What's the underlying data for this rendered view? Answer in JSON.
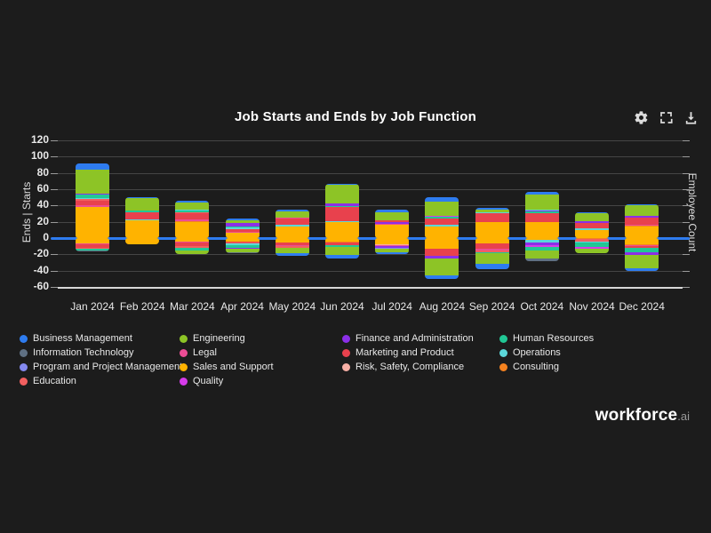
{
  "title": "Job Starts and Ends by Job Function",
  "axes": {
    "left_label": "Ends | Starts",
    "right_label": "Employee Count"
  },
  "branding": {
    "name": "workforce",
    "suffix": ".ai"
  },
  "toolbar": {
    "icons": [
      "settings",
      "fullscreen",
      "download"
    ]
  },
  "colors": {
    "background": "#1c1c1c",
    "grid": "#454545",
    "axis_line": "#d8d8d8",
    "zero_line": "#2e7cf0",
    "text": "#e8e8e8"
  },
  "chart_data": {
    "type": "bar",
    "stacked": true,
    "title": "Job Starts and Ends by Job Function",
    "ylim": [
      -60,
      120
    ],
    "y_ticks": [
      120,
      100,
      80,
      60,
      40,
      20,
      0,
      -20,
      -40,
      -60
    ],
    "grid": true,
    "legend_position": "bottom",
    "categories": [
      "Jan 2024",
      "Feb 2024",
      "Mar 2024",
      "Apr 2024",
      "May 2024",
      "Jun 2024",
      "Jul 2024",
      "Aug 2024",
      "Sep 2024",
      "Oct 2024",
      "Nov 2024",
      "Dec 2024"
    ],
    "series_colors": {
      "Business Management": "#2e7cf0",
      "Information Technology": "#5f7083",
      "Program and Project Management": "#8489f0",
      "Education": "#f25f5f",
      "Engineering": "#8dc426",
      "Legal": "#ec4d95",
      "Sales and Support": "#ffb300",
      "Quality": "#d63bea",
      "Finance and Administration": "#8b2fe8",
      "Marketing and Product": "#e8414d",
      "Risk, Safety, Compliance": "#f7afa5",
      "Human Resources": "#21c795",
      "Operations": "#5bd7d9",
      "Consulting": "#f5821f"
    },
    "legend_columns": [
      [
        "Business Management",
        "Information Technology",
        "Program and Project Management",
        "Education"
      ],
      [
        "Engineering",
        "Legal",
        "Sales and Support",
        "Quality"
      ],
      [
        "Finance and Administration",
        "Marketing and Product",
        "Risk, Safety, Compliance"
      ],
      [
        "Human Resources",
        "Operations",
        "Consulting"
      ]
    ],
    "months": [
      {
        "label": "Jan 2024",
        "starts": [
          [
            "Sales and Support",
            38
          ],
          [
            "Legal",
            2
          ],
          [
            "Marketing and Product",
            6
          ],
          [
            "Education",
            2
          ],
          [
            "Operations",
            1
          ],
          [
            "Human Resources",
            4
          ],
          [
            "Finance and Administration",
            1
          ],
          [
            "Engineering",
            30
          ],
          [
            "Business Management",
            8
          ]
        ],
        "ends": [
          [
            "Sales and Support",
            6
          ],
          [
            "Legal",
            2
          ],
          [
            "Marketing and Product",
            4
          ],
          [
            "Education",
            1
          ],
          [
            "Human Resources",
            2
          ],
          [
            "Information Technology",
            1
          ]
        ]
      },
      {
        "label": "Feb 2024",
        "starts": [
          [
            "Sales and Support",
            22
          ],
          [
            "Operations",
            1
          ],
          [
            "Marketing and Product",
            9
          ],
          [
            "Human Resources",
            2
          ],
          [
            "Engineering",
            15
          ],
          [
            "Business Management",
            1
          ]
        ],
        "ends": [
          [
            "Sales and Support",
            8
          ]
        ]
      },
      {
        "label": "Mar 2024",
        "starts": [
          [
            "Sales and Support",
            20
          ],
          [
            "Consulting",
            1
          ],
          [
            "Legal",
            2
          ],
          [
            "Marketing and Product",
            8
          ],
          [
            "Education",
            1
          ],
          [
            "Human Resources",
            2
          ],
          [
            "Operations",
            1
          ],
          [
            "Engineering",
            9
          ],
          [
            "Business Management",
            2
          ]
        ],
        "ends": [
          [
            "Sales and Support",
            4
          ],
          [
            "Legal",
            2
          ],
          [
            "Marketing and Product",
            4
          ],
          [
            "Education",
            2
          ],
          [
            "Human Resources",
            3
          ],
          [
            "Engineering",
            5
          ]
        ]
      },
      {
        "label": "Apr 2024",
        "starts": [
          [
            "Sales and Support",
            6
          ],
          [
            "Consulting",
            1
          ],
          [
            "Legal",
            1
          ],
          [
            "Marketing and Product",
            3
          ],
          [
            "Operations",
            2
          ],
          [
            "Human Resources",
            1
          ],
          [
            "Finance and Administration",
            4
          ],
          [
            "Quality",
            1
          ],
          [
            "Engineering",
            3
          ],
          [
            "Business Management",
            2
          ]
        ],
        "ends": [
          [
            "Sales and Support",
            4
          ],
          [
            "Marketing and Product",
            2
          ],
          [
            "Education",
            1
          ],
          [
            "Operations",
            2
          ],
          [
            "Human Resources",
            3
          ],
          [
            "Finance and Administration",
            1
          ],
          [
            "Engineering",
            4
          ],
          [
            "Information Technology",
            1
          ]
        ]
      },
      {
        "label": "May 2024",
        "starts": [
          [
            "Sales and Support",
            14
          ],
          [
            "Operations",
            2
          ],
          [
            "Marketing and Product",
            8
          ],
          [
            "Legal",
            1
          ],
          [
            "Engineering",
            8
          ],
          [
            "Business Management",
            2
          ]
        ],
        "ends": [
          [
            "Sales and Support",
            5
          ],
          [
            "Marketing and Product",
            4
          ],
          [
            "Legal",
            1
          ],
          [
            "Education",
            2
          ],
          [
            "Engineering",
            7
          ],
          [
            "Business Management",
            3
          ]
        ]
      },
      {
        "label": "Jun 2024",
        "starts": [
          [
            "Sales and Support",
            20
          ],
          [
            "Operations",
            1
          ],
          [
            "Marketing and Product",
            17
          ],
          [
            "Human Resources",
            1
          ],
          [
            "Finance and Administration",
            3
          ],
          [
            "Engineering",
            23
          ],
          [
            "Business Management",
            2
          ]
        ],
        "ends": [
          [
            "Sales and Support",
            4
          ],
          [
            "Consulting",
            1
          ],
          [
            "Marketing and Product",
            4
          ],
          [
            "Human Resources",
            2
          ],
          [
            "Engineering",
            10
          ],
          [
            "Business Management",
            4
          ]
        ]
      },
      {
        "label": "Jul 2024",
        "starts": [
          [
            "Sales and Support",
            16
          ],
          [
            "Legal",
            1
          ],
          [
            "Finance and Administration",
            3
          ],
          [
            "Marketing and Product",
            2
          ],
          [
            "Engineering",
            10
          ],
          [
            "Business Management",
            3
          ]
        ],
        "ends": [
          [
            "Sales and Support",
            8
          ],
          [
            "Risk, Safety, Compliance",
            1
          ],
          [
            "Legal",
            1
          ],
          [
            "Finance and Administration",
            2
          ],
          [
            "Program and Project Management",
            1
          ],
          [
            "Engineering",
            4
          ],
          [
            "Business Management",
            3
          ]
        ]
      },
      {
        "label": "Aug 2024",
        "starts": [
          [
            "Sales and Support",
            14
          ],
          [
            "Operations",
            2
          ],
          [
            "Marketing and Product",
            8
          ],
          [
            "Human Resources",
            2
          ],
          [
            "Quality",
            1
          ],
          [
            "Engineering",
            18
          ],
          [
            "Business Management",
            5
          ]
        ],
        "ends": [
          [
            "Sales and Support",
            13
          ],
          [
            "Marketing and Product",
            9
          ],
          [
            "Finance and Administration",
            3
          ],
          [
            "Engineering",
            21
          ],
          [
            "Business Management",
            4
          ]
        ]
      },
      {
        "label": "Sep 2024",
        "starts": [
          [
            "Sales and Support",
            20
          ],
          [
            "Marketing and Product",
            11
          ],
          [
            "Operations",
            1
          ],
          [
            "Engineering",
            3
          ],
          [
            "Business Management",
            2
          ]
        ],
        "ends": [
          [
            "Sales and Support",
            6
          ],
          [
            "Marketing and Product",
            7
          ],
          [
            "Legal",
            2
          ],
          [
            "Education",
            2
          ],
          [
            "Human Resources",
            2
          ],
          [
            "Engineering",
            13
          ],
          [
            "Business Management",
            6
          ]
        ]
      },
      {
        "label": "Oct 2024",
        "starts": [
          [
            "Sales and Support",
            20
          ],
          [
            "Marketing and Product",
            11
          ],
          [
            "Human Resources",
            2
          ],
          [
            "Finance and Administration",
            1
          ],
          [
            "Operations",
            1
          ],
          [
            "Engineering",
            19
          ],
          [
            "Business Management",
            3
          ]
        ],
        "ends": [
          [
            "Sales and Support",
            2
          ],
          [
            "Operations",
            3
          ],
          [
            "Finance and Administration",
            4
          ],
          [
            "Quality",
            2
          ],
          [
            "Human Resources",
            4
          ],
          [
            "Engineering",
            10
          ],
          [
            "Information Technology",
            3
          ]
        ]
      },
      {
        "label": "Nov 2024",
        "starts": [
          [
            "Sales and Support",
            10
          ],
          [
            "Operations",
            2
          ],
          [
            "Marketing and Product",
            7
          ],
          [
            "Finance and Administration",
            2
          ],
          [
            "Engineering",
            9
          ],
          [
            "Business Management",
            2
          ]
        ],
        "ends": [
          [
            "Consulting",
            1
          ],
          [
            "Education",
            3
          ],
          [
            "Operations",
            2
          ],
          [
            "Human Resources",
            5
          ],
          [
            "Quality",
            2
          ],
          [
            "Engineering",
            6
          ]
        ]
      },
      {
        "label": "Dec 2024",
        "starts": [
          [
            "Sales and Support",
            14
          ],
          [
            "Consulting",
            1
          ],
          [
            "Legal",
            1
          ],
          [
            "Marketing and Product",
            9
          ],
          [
            "Finance and Administration",
            2
          ],
          [
            "Engineering",
            13
          ],
          [
            "Business Management",
            2
          ]
        ],
        "ends": [
          [
            "Sales and Support",
            8
          ],
          [
            "Consulting",
            1
          ],
          [
            "Legal",
            1
          ],
          [
            "Marketing and Product",
            2
          ],
          [
            "Human Resources",
            5
          ],
          [
            "Operations",
            1
          ],
          [
            "Finance and Administration",
            3
          ],
          [
            "Engineering",
            16
          ],
          [
            "Business Management",
            3
          ]
        ]
      }
    ]
  }
}
